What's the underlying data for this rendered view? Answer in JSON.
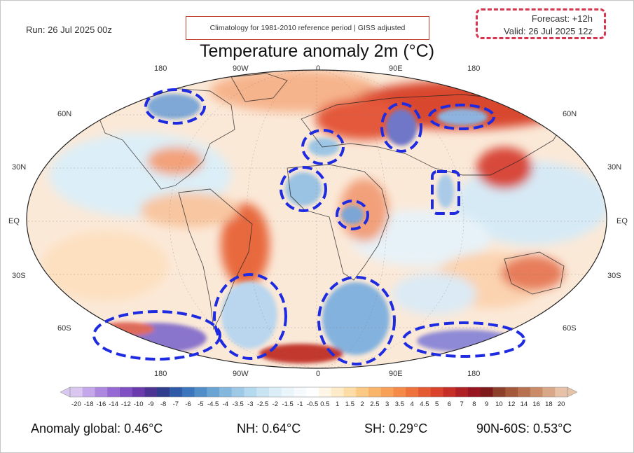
{
  "header": {
    "run": "Run: 26 Jul 2025 00z",
    "climatology": "Climatology for 1981-2010 reference period | GISS adjusted",
    "forecast": "Forecast: +12h",
    "valid": "Valid: 26 Jul 2025 12z",
    "title": "Temperature anomaly 2m (°C)"
  },
  "axes": {
    "top_lon": [
      "180",
      "90W",
      "0",
      "90E",
      "180"
    ],
    "bottom_lon": [
      "180",
      "90W",
      "0",
      "90E",
      "180"
    ],
    "lat_left": [
      "60N",
      "30N",
      "EQ",
      "30S",
      "60S"
    ],
    "lat_right": [
      "60N",
      "30N",
      "EQ",
      "30S",
      "60S"
    ]
  },
  "colorbar": {
    "ticks": [
      "-20",
      "-18",
      "-16",
      "-14",
      "-12",
      "-10",
      "-9",
      "-8",
      "-7",
      "-6",
      "-5",
      "-4.5",
      "-4",
      "-3.5",
      "-3",
      "-2.5",
      "-2",
      "-1.5",
      "-1",
      "-0.5",
      "0.5",
      "1",
      "1.5",
      "2",
      "2.5",
      "3",
      "3.5",
      "4",
      "4.5",
      "5",
      "6",
      "7",
      "8",
      "9",
      "10",
      "12",
      "14",
      "16",
      "18",
      "20"
    ],
    "colors": [
      "#d9c7f0",
      "#c4a6ea",
      "#ad86e0",
      "#9668d4",
      "#7f4fc4",
      "#6a3aae",
      "#4b3494",
      "#2f3d8f",
      "#2e5aa8",
      "#3b75bd",
      "#4f8ec9",
      "#6aa4d4",
      "#84b7de",
      "#9dc9e6",
      "#b4d8ee",
      "#c8e4f3",
      "#dbeef8",
      "#eaf5fb",
      "#f6fafd",
      "#ffffff",
      "#fff6e6",
      "#feebc8",
      "#fddca5",
      "#fcc985",
      "#fbb56b",
      "#f8a057",
      "#f48a47",
      "#ee723b",
      "#e45a32",
      "#d9432b",
      "#c52f27",
      "#ae2024",
      "#951620",
      "#7f1a1a",
      "#8e3f2c",
      "#a4573b",
      "#b8714f",
      "#c98b68",
      "#d9a888",
      "#e6c3a8"
    ]
  },
  "stats": {
    "global": "Anomaly global: 0.46°C",
    "nh": "NH: 0.64°C",
    "sh": "SH: 0.29°C",
    "band": "90N-60S: 0.53°C"
  },
  "colors": {
    "annotation": "#1e2be0",
    "forecast_border": "#d7364f",
    "clim_border": "#c0392b"
  }
}
